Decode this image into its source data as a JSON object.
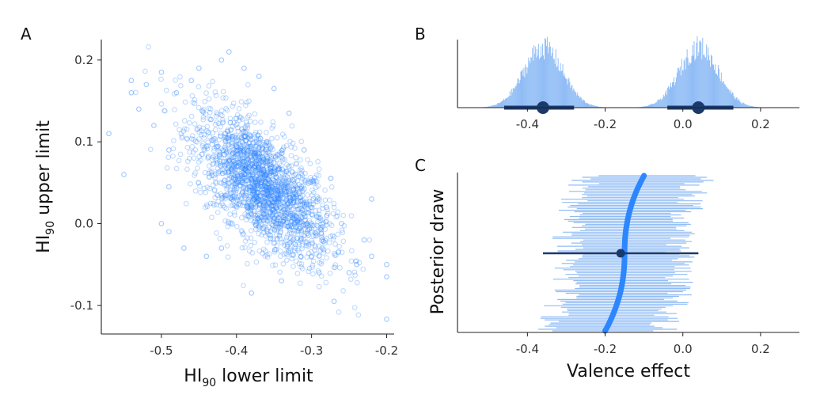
{
  "colors": {
    "point": "#2e86ff",
    "light": "#8fbcf5",
    "dark": "#1a3a6b",
    "axis": "#222222"
  },
  "panels": {
    "A": {
      "label": "A"
    },
    "B": {
      "label": "B"
    },
    "C": {
      "label": "C"
    }
  },
  "chart_data": [
    {
      "id": "A",
      "type": "scatter",
      "title": "",
      "xlabel": {
        "main": "HI",
        "sub": "90",
        "rest": " lower limit"
      },
      "ylabel": {
        "main": "HI",
        "sub": "90",
        "rest": " upper limit"
      },
      "xlim": [
        -0.58,
        -0.19
      ],
      "ylim": [
        -0.135,
        0.225
      ],
      "xticks": [
        -0.5,
        -0.4,
        -0.3,
        -0.2
      ],
      "xtick_labels": [
        "-0.5",
        "-0.4",
        "-0.3",
        "-0.2"
      ],
      "yticks": [
        -0.1,
        0.0,
        0.1,
        0.2
      ],
      "ytick_labels": [
        "-0.1",
        "0.0",
        "0.1",
        "0.2"
      ],
      "marker": "open circle",
      "point_alpha": 0.3,
      "n_points": 2000,
      "center": [
        -0.365,
        0.045
      ],
      "sd": [
        0.045,
        0.045
      ],
      "correlation": -0.65,
      "points": [
        [
          -0.57,
          0.11
        ],
        [
          -0.55,
          0.06
        ],
        [
          -0.54,
          0.175
        ],
        [
          -0.54,
          0.16
        ],
        [
          -0.53,
          0.14
        ],
        [
          -0.52,
          0.17
        ],
        [
          -0.51,
          0.12
        ],
        [
          -0.5,
          0.185
        ],
        [
          -0.49,
          0.045
        ],
        [
          -0.49,
          0.09
        ],
        [
          -0.48,
          0.16
        ],
        [
          -0.46,
          0.175
        ],
        [
          -0.45,
          0.19
        ],
        [
          -0.42,
          0.2
        ],
        [
          -0.41,
          0.21
        ],
        [
          -0.5,
          0.0
        ],
        [
          -0.49,
          -0.01
        ],
        [
          -0.47,
          -0.03
        ],
        [
          -0.44,
          -0.04
        ],
        [
          -0.42,
          -0.03
        ],
        [
          -0.38,
          -0.085
        ],
        [
          -0.3,
          -0.04
        ],
        [
          -0.29,
          -0.06
        ],
        [
          -0.27,
          -0.095
        ],
        [
          -0.25,
          -0.06
        ],
        [
          -0.24,
          -0.05
        ],
        [
          -0.22,
          -0.04
        ],
        [
          -0.2,
          -0.05
        ],
        [
          -0.2,
          -0.065
        ],
        [
          -0.2,
          -0.117
        ],
        [
          -0.23,
          -0.02
        ],
        [
          -0.26,
          0.0
        ],
        [
          -0.28,
          0.02
        ],
        [
          -0.22,
          0.03
        ],
        [
          -0.33,
          0.135
        ],
        [
          -0.35,
          0.165
        ],
        [
          -0.37,
          0.18
        ],
        [
          -0.39,
          0.19
        ],
        [
          -0.31,
          0.09
        ],
        [
          -0.34,
          -0.07
        ]
      ]
    },
    {
      "id": "B",
      "type": "area",
      "title": "",
      "xlim": [
        -0.58,
        0.3
      ],
      "xticks": [
        -0.4,
        -0.2,
        0.0,
        0.2
      ],
      "xtick_labels": [
        "-0.4",
        "-0.2",
        "0.0",
        "0.2"
      ],
      "histograms": [
        {
          "center": -0.36,
          "sd": 0.05,
          "point": -0.36,
          "interval": [
            -0.46,
            -0.28
          ]
        },
        {
          "center": 0.04,
          "sd": 0.05,
          "point": 0.04,
          "interval": [
            -0.04,
            0.13
          ]
        }
      ]
    },
    {
      "id": "C",
      "type": "line",
      "title": "",
      "xlabel": "Valence effect",
      "ylabel": "Posterior draw",
      "xlim": [
        -0.58,
        0.3
      ],
      "xticks": [
        -0.4,
        -0.2,
        0.0,
        0.2
      ],
      "xtick_labels": [
        "-0.4",
        "-0.2",
        "0.0",
        "0.2"
      ],
      "n_draws": 100,
      "draw_center_range": [
        -0.2,
        -0.1
      ],
      "draw_half_width": 0.15,
      "summary_point": -0.16,
      "summary_interval": [
        -0.36,
        0.04
      ]
    }
  ]
}
